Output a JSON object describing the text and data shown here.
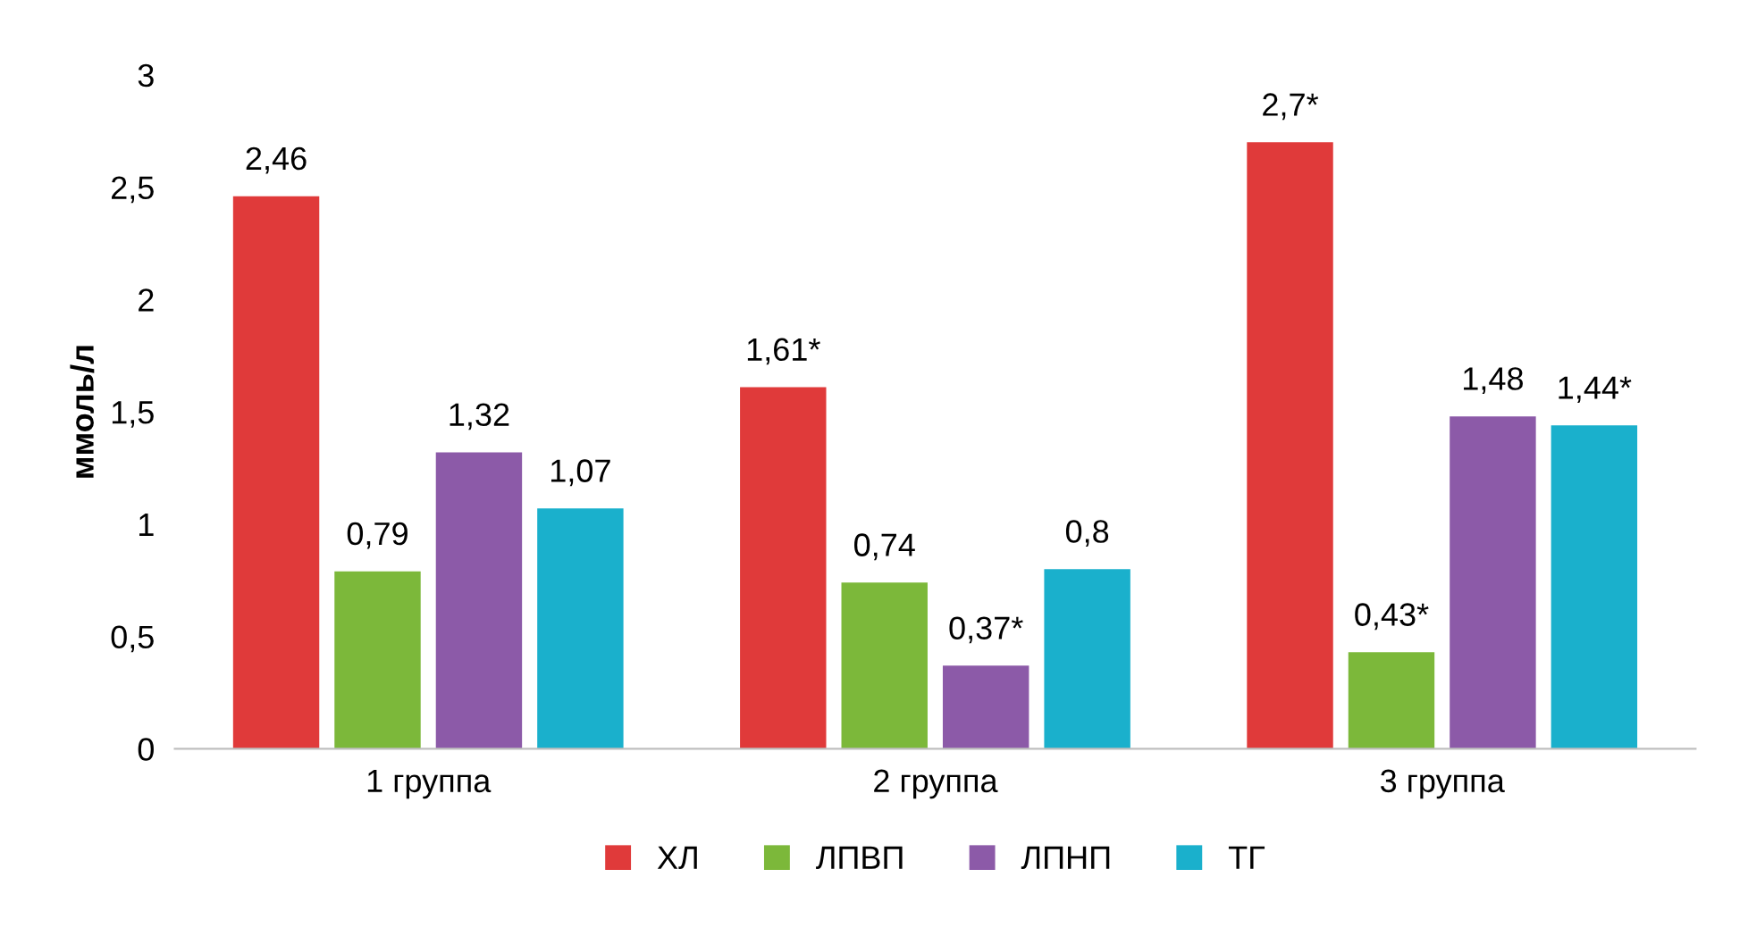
{
  "chart_data": {
    "type": "bar",
    "ylabel": "ммоль/л",
    "categories": [
      "1 группа",
      "2 группа",
      "3 группа"
    ],
    "series": [
      {
        "name": "ХЛ",
        "color": "#e03a3a",
        "values": [
          2.46,
          1.61,
          2.7
        ],
        "value_labels": [
          "2,46",
          "1,61*",
          "2,7*"
        ]
      },
      {
        "name": "ЛПВП",
        "color": "#7cb83a",
        "values": [
          0.79,
          0.74,
          0.43
        ],
        "value_labels": [
          "0,79",
          "0,74",
          "0,43*"
        ]
      },
      {
        "name": "ЛПНП",
        "color": "#8c5aa8",
        "values": [
          1.32,
          0.37,
          1.48
        ],
        "value_labels": [
          "1,32",
          "0,37*",
          "1,48"
        ]
      },
      {
        "name": "ТГ",
        "color": "#1ab0cc",
        "values": [
          1.07,
          0.8,
          1.44
        ],
        "value_labels": [
          "1,07",
          "0,8",
          "1,44*"
        ]
      }
    ],
    "ylim": [
      0,
      3
    ],
    "yticks": [
      0,
      {
        "value": 0.5,
        "label": "0,5"
      },
      1,
      {
        "value": 1.5,
        "label": "1,5"
      },
      2,
      {
        "value": 2.5,
        "label": "2,5"
      },
      3
    ],
    "grid": false,
    "legend": "bottom"
  }
}
